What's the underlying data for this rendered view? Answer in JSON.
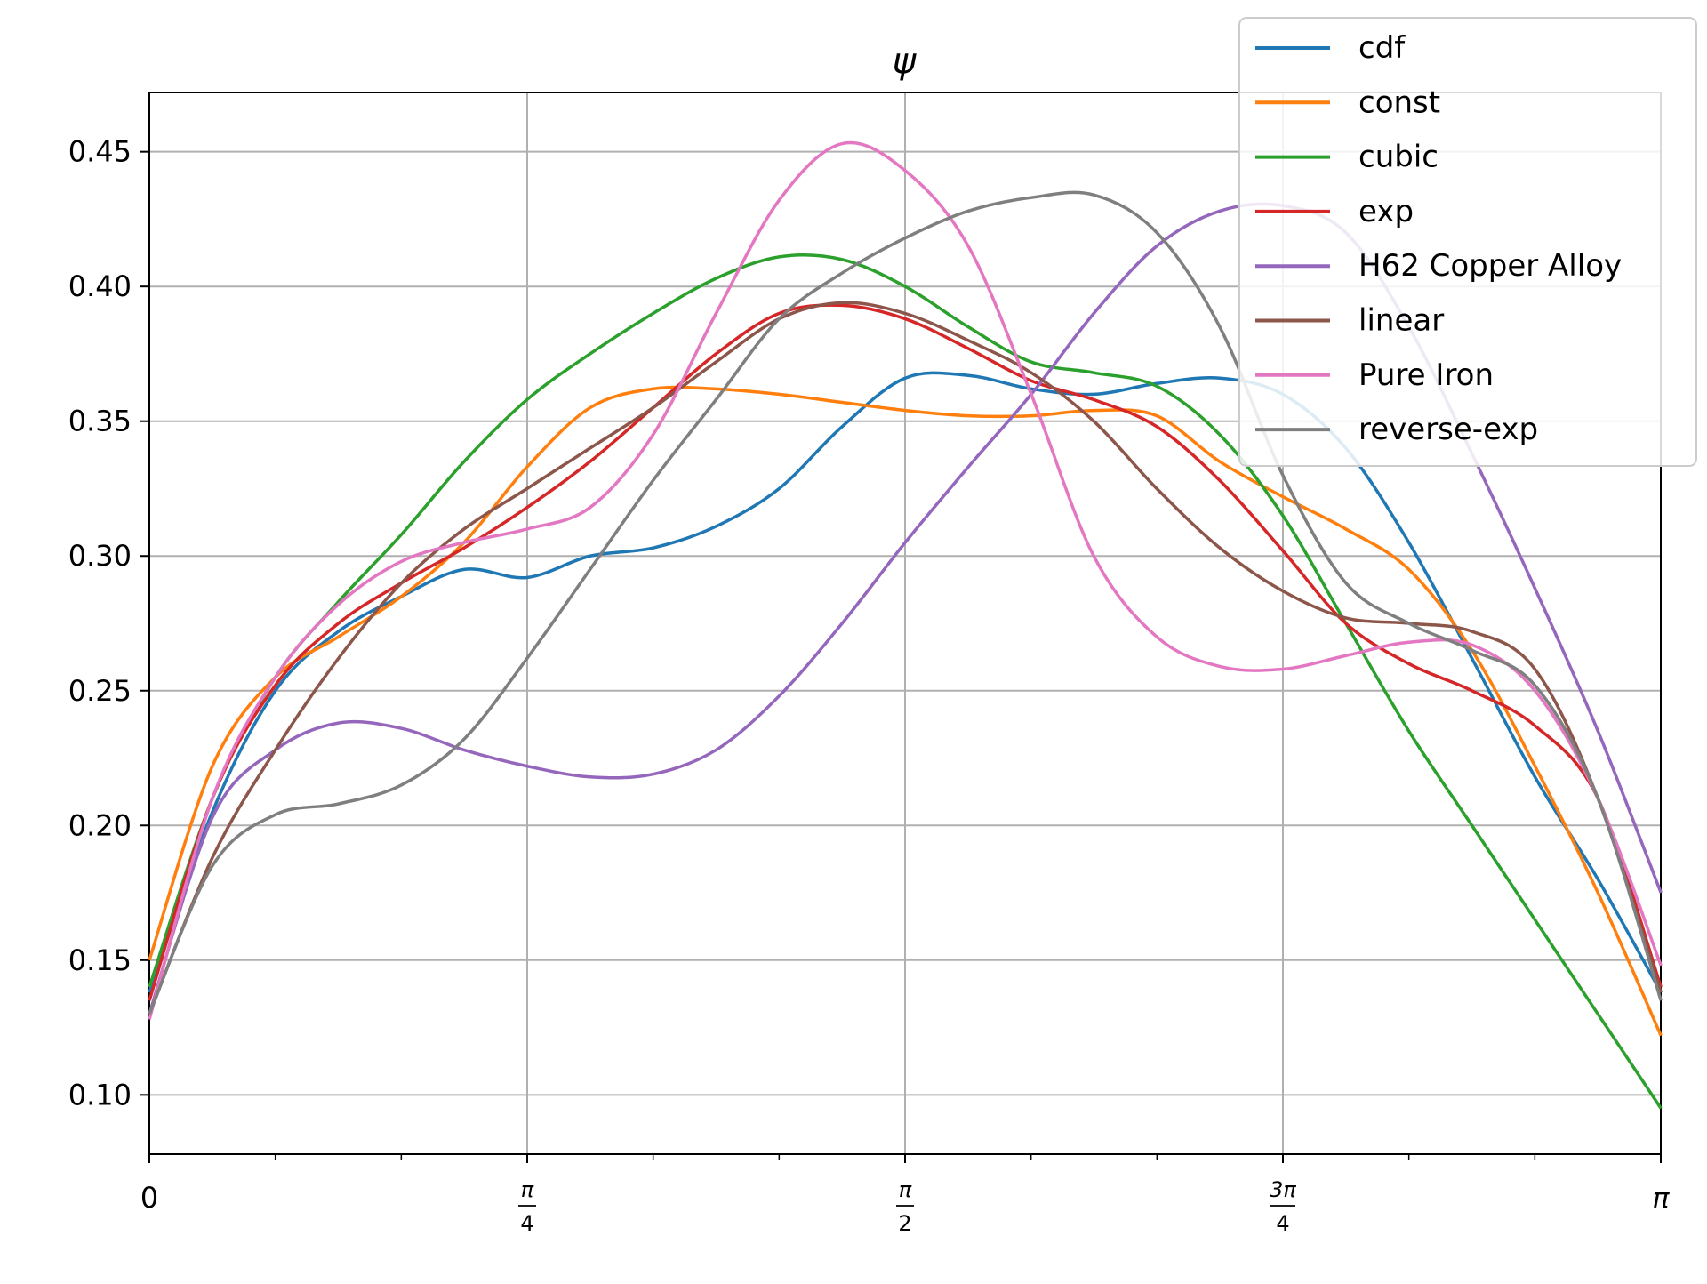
{
  "chart_data": {
    "type": "line",
    "title": "ψ",
    "xlabel": "",
    "ylabel": "",
    "xlim": [
      0,
      3.14159
    ],
    "ylim": [
      0.078,
      0.472
    ],
    "grid": true,
    "legend_position": "top-right",
    "x_ticks": [
      {
        "value": 0,
        "label": "0"
      },
      {
        "value": 0.7854,
        "label": "π/4"
      },
      {
        "value": 1.5708,
        "label": "π/2"
      },
      {
        "value": 2.3562,
        "label": "3π/4"
      },
      {
        "value": 3.14159,
        "label": "π"
      }
    ],
    "y_ticks": [
      {
        "value": 0.1,
        "label": "0.10"
      },
      {
        "value": 0.15,
        "label": "0.15"
      },
      {
        "value": 0.2,
        "label": "0.20"
      },
      {
        "value": 0.25,
        "label": "0.25"
      },
      {
        "value": 0.3,
        "label": "0.30"
      },
      {
        "value": 0.35,
        "label": "0.35"
      },
      {
        "value": 0.4,
        "label": "0.40"
      },
      {
        "value": 0.45,
        "label": "0.45"
      }
    ],
    "series": [
      {
        "name": "cdf",
        "color": "#1f77b4",
        "x": [
          0,
          0.131,
          0.262,
          0.393,
          0.524,
          0.654,
          0.785,
          0.916,
          1.047,
          1.178,
          1.309,
          1.44,
          1.571,
          1.702,
          1.833,
          1.963,
          2.094,
          2.225,
          2.356,
          2.487,
          2.618,
          2.749,
          2.88,
          3.011,
          3.142
        ],
        "y": [
          0.138,
          0.205,
          0.25,
          0.272,
          0.285,
          0.295,
          0.292,
          0.3,
          0.303,
          0.311,
          0.325,
          0.348,
          0.366,
          0.367,
          0.362,
          0.36,
          0.364,
          0.366,
          0.36,
          0.34,
          0.305,
          0.262,
          0.218,
          0.18,
          0.138
        ]
      },
      {
        "name": "const",
        "color": "#ff7f0e",
        "x": [
          0,
          0.131,
          0.262,
          0.393,
          0.524,
          0.654,
          0.785,
          0.916,
          1.047,
          1.178,
          1.309,
          1.44,
          1.571,
          1.702,
          1.833,
          1.963,
          2.094,
          2.225,
          2.356,
          2.487,
          2.618,
          2.749,
          2.88,
          3.011,
          3.142
        ],
        "y": [
          0.15,
          0.222,
          0.255,
          0.27,
          0.285,
          0.305,
          0.333,
          0.355,
          0.362,
          0.362,
          0.36,
          0.357,
          0.354,
          0.352,
          0.352,
          0.354,
          0.352,
          0.335,
          0.322,
          0.31,
          0.295,
          0.265,
          0.222,
          0.175,
          0.122
        ]
      },
      {
        "name": "cubic",
        "color": "#2ca02c",
        "x": [
          0,
          0.131,
          0.262,
          0.393,
          0.524,
          0.654,
          0.785,
          0.916,
          1.047,
          1.178,
          1.309,
          1.44,
          1.571,
          1.702,
          1.833,
          1.963,
          2.094,
          2.225,
          2.356,
          2.487,
          2.618,
          2.749,
          2.88,
          3.011,
          3.142
        ],
        "y": [
          0.14,
          0.21,
          0.255,
          0.283,
          0.308,
          0.335,
          0.358,
          0.375,
          0.39,
          0.403,
          0.411,
          0.41,
          0.4,
          0.385,
          0.372,
          0.368,
          0.363,
          0.345,
          0.315,
          0.275,
          0.235,
          0.2,
          0.165,
          0.13,
          0.095
        ]
      },
      {
        "name": "exp",
        "color": "#d62728",
        "x": [
          0,
          0.131,
          0.262,
          0.393,
          0.524,
          0.654,
          0.785,
          0.916,
          1.047,
          1.178,
          1.309,
          1.44,
          1.571,
          1.702,
          1.833,
          1.963,
          2.094,
          2.225,
          2.356,
          2.487,
          2.618,
          2.749,
          2.88,
          3.011,
          3.142
        ],
        "y": [
          0.135,
          0.21,
          0.252,
          0.275,
          0.29,
          0.303,
          0.318,
          0.335,
          0.355,
          0.375,
          0.39,
          0.393,
          0.388,
          0.377,
          0.365,
          0.358,
          0.348,
          0.328,
          0.302,
          0.275,
          0.26,
          0.25,
          0.237,
          0.21,
          0.14
        ]
      },
      {
        "name": "H62 Copper Alloy",
        "color": "#9467bd",
        "x": [
          0,
          0.131,
          0.262,
          0.393,
          0.524,
          0.654,
          0.785,
          0.916,
          1.047,
          1.178,
          1.309,
          1.44,
          1.571,
          1.702,
          1.833,
          1.963,
          2.094,
          2.225,
          2.356,
          2.487,
          2.618,
          2.749,
          2.88,
          3.011,
          3.142
        ],
        "y": [
          0.13,
          0.203,
          0.228,
          0.238,
          0.236,
          0.228,
          0.222,
          0.218,
          0.219,
          0.228,
          0.248,
          0.275,
          0.305,
          0.333,
          0.36,
          0.39,
          0.415,
          0.428,
          0.43,
          0.42,
          0.385,
          0.338,
          0.288,
          0.235,
          0.175
        ]
      },
      {
        "name": "linear",
        "color": "#8c564b",
        "x": [
          0,
          0.131,
          0.262,
          0.393,
          0.524,
          0.654,
          0.785,
          0.916,
          1.047,
          1.178,
          1.309,
          1.44,
          1.571,
          1.702,
          1.833,
          1.963,
          2.094,
          2.225,
          2.356,
          2.487,
          2.618,
          2.749,
          2.88,
          3.011,
          3.142
        ],
        "y": [
          0.13,
          0.188,
          0.228,
          0.262,
          0.29,
          0.31,
          0.325,
          0.34,
          0.355,
          0.372,
          0.388,
          0.394,
          0.39,
          0.38,
          0.368,
          0.35,
          0.325,
          0.303,
          0.287,
          0.277,
          0.275,
          0.272,
          0.258,
          0.21,
          0.138
        ]
      },
      {
        "name": "Pure Iron",
        "color": "#e377c2",
        "x": [
          0,
          0.131,
          0.262,
          0.393,
          0.524,
          0.654,
          0.785,
          0.916,
          1.047,
          1.178,
          1.309,
          1.44,
          1.571,
          1.702,
          1.833,
          1.963,
          2.094,
          2.225,
          2.356,
          2.487,
          2.618,
          2.749,
          2.88,
          3.011,
          3.142
        ],
        "y": [
          0.128,
          0.21,
          0.255,
          0.282,
          0.298,
          0.305,
          0.31,
          0.318,
          0.345,
          0.39,
          0.432,
          0.453,
          0.443,
          0.415,
          0.36,
          0.3,
          0.27,
          0.259,
          0.258,
          0.263,
          0.268,
          0.267,
          0.25,
          0.21,
          0.148
        ]
      },
      {
        "name": "reverse-exp",
        "color": "#7f7f7f",
        "x": [
          0,
          0.131,
          0.262,
          0.393,
          0.524,
          0.654,
          0.785,
          0.916,
          1.047,
          1.178,
          1.309,
          1.44,
          1.571,
          1.702,
          1.833,
          1.963,
          2.094,
          2.225,
          2.356,
          2.487,
          2.618,
          2.749,
          2.88,
          3.011,
          3.142
        ],
        "y": [
          0.13,
          0.185,
          0.204,
          0.208,
          0.215,
          0.232,
          0.262,
          0.295,
          0.328,
          0.358,
          0.388,
          0.405,
          0.418,
          0.428,
          0.433,
          0.434,
          0.42,
          0.385,
          0.33,
          0.29,
          0.275,
          0.265,
          0.252,
          0.21,
          0.135
        ]
      }
    ]
  }
}
